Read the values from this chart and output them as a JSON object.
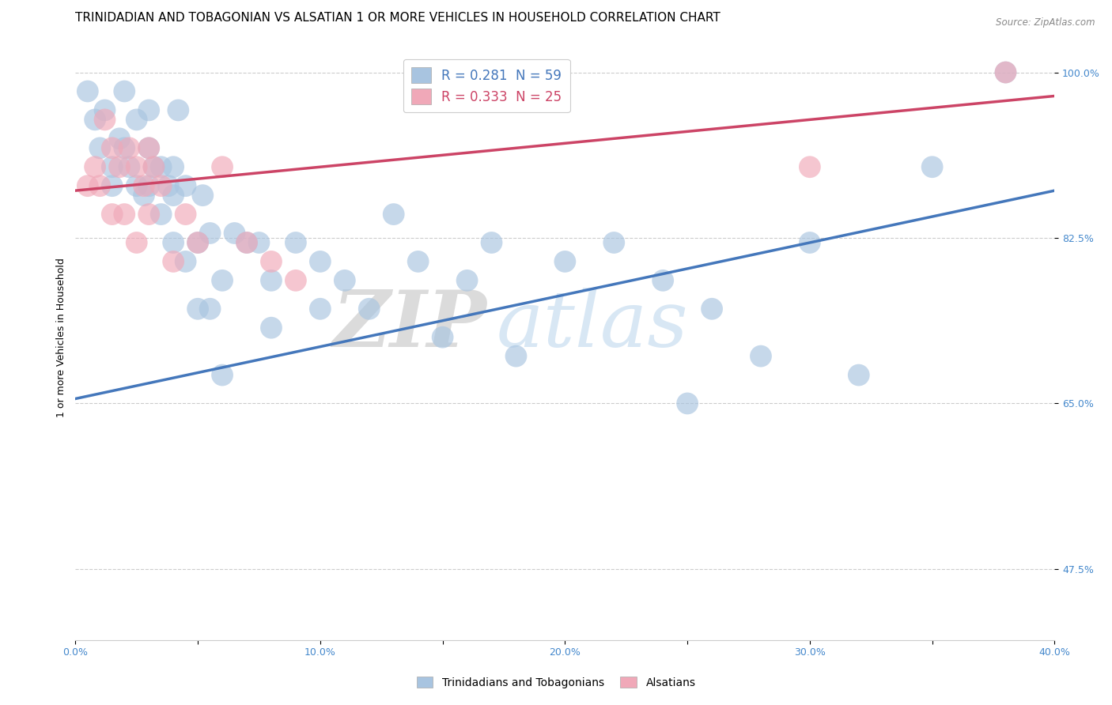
{
  "title": "TRINIDADIAN AND TOBAGONIAN VS ALSATIAN 1 OR MORE VEHICLES IN HOUSEHOLD CORRELATION CHART",
  "source_text": "Source: ZipAtlas.com",
  "ylabel": "1 or more Vehicles in Household",
  "xlabel": "",
  "xlim": [
    0.0,
    0.4
  ],
  "ylim": [
    0.4,
    1.04
  ],
  "xtick_labels": [
    "0.0%",
    "",
    "10.0%",
    "",
    "20.0%",
    "",
    "30.0%",
    "",
    "40.0%"
  ],
  "xtick_vals": [
    0.0,
    0.05,
    0.1,
    0.15,
    0.2,
    0.25,
    0.3,
    0.35,
    0.4
  ],
  "ytick_labels": [
    "100.0%",
    "82.5%",
    "65.0%",
    "47.5%"
  ],
  "ytick_vals": [
    1.0,
    0.825,
    0.65,
    0.475
  ],
  "hgrid_vals": [
    1.0,
    0.825,
    0.65,
    0.475
  ],
  "blue_color": "#a8c4e0",
  "pink_color": "#f0a8b8",
  "blue_line_color": "#4477bb",
  "pink_line_color": "#cc4466",
  "blue_label": "Trinidadians and Tobagonians",
  "pink_label": "Alsatians",
  "R_blue": 0.281,
  "N_blue": 59,
  "R_pink": 0.333,
  "N_pink": 25,
  "watermark_zip": "ZIP",
  "watermark_atlas": "atlas",
  "watermark_zip_color": "#cccccc",
  "watermark_atlas_color": "#c8ddf0",
  "blue_trendline_x": [
    0.0,
    0.4
  ],
  "blue_trendline_y": [
    0.655,
    0.875
  ],
  "pink_trendline_x": [
    0.0,
    0.4
  ],
  "pink_trendline_y": [
    0.875,
    0.975
  ],
  "blue_x": [
    0.005,
    0.008,
    0.01,
    0.012,
    0.015,
    0.015,
    0.018,
    0.02,
    0.02,
    0.022,
    0.025,
    0.025,
    0.028,
    0.03,
    0.03,
    0.03,
    0.032,
    0.035,
    0.035,
    0.038,
    0.04,
    0.04,
    0.04,
    0.042,
    0.045,
    0.045,
    0.05,
    0.05,
    0.052,
    0.055,
    0.055,
    0.06,
    0.06,
    0.065,
    0.07,
    0.075,
    0.08,
    0.08,
    0.09,
    0.1,
    0.1,
    0.11,
    0.12,
    0.13,
    0.14,
    0.15,
    0.16,
    0.17,
    0.18,
    0.2,
    0.22,
    0.24,
    0.26,
    0.28,
    0.3,
    0.35,
    0.38,
    0.25,
    0.32
  ],
  "blue_y": [
    0.98,
    0.95,
    0.92,
    0.96,
    0.9,
    0.88,
    0.93,
    0.92,
    0.98,
    0.9,
    0.88,
    0.95,
    0.87,
    0.88,
    0.92,
    0.96,
    0.9,
    0.85,
    0.9,
    0.88,
    0.82,
    0.87,
    0.9,
    0.96,
    0.8,
    0.88,
    0.75,
    0.82,
    0.87,
    0.75,
    0.83,
    0.68,
    0.78,
    0.83,
    0.82,
    0.82,
    0.78,
    0.73,
    0.82,
    0.75,
    0.8,
    0.78,
    0.75,
    0.85,
    0.8,
    0.72,
    0.78,
    0.82,
    0.7,
    0.8,
    0.82,
    0.78,
    0.75,
    0.7,
    0.82,
    0.9,
    1.0,
    0.65,
    0.68
  ],
  "pink_x": [
    0.005,
    0.008,
    0.01,
    0.012,
    0.015,
    0.015,
    0.018,
    0.02,
    0.022,
    0.025,
    0.025,
    0.028,
    0.03,
    0.03,
    0.032,
    0.035,
    0.04,
    0.045,
    0.05,
    0.06,
    0.07,
    0.08,
    0.09,
    0.3,
    0.38
  ],
  "pink_y": [
    0.88,
    0.9,
    0.88,
    0.95,
    0.85,
    0.92,
    0.9,
    0.85,
    0.92,
    0.82,
    0.9,
    0.88,
    0.85,
    0.92,
    0.9,
    0.88,
    0.8,
    0.85,
    0.82,
    0.9,
    0.82,
    0.8,
    0.78,
    0.9,
    1.0
  ],
  "background_color": "#ffffff",
  "title_fontsize": 11,
  "axis_label_fontsize": 9,
  "tick_fontsize": 9,
  "legend_fontsize": 12
}
